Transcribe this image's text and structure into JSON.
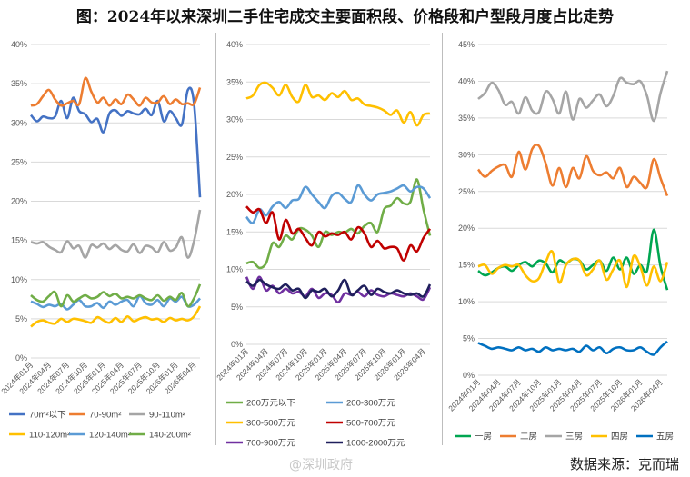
{
  "title": "图：2024年以来深圳二手住宅成交主要面积段、价格段和户型段月度占比走势",
  "source": "数据来源：克而瑞",
  "watermark": "@深圳政府",
  "x_labels": [
    "2024年01月",
    "2024年04月",
    "2024年07月",
    "2024年10月",
    "2025年01月",
    "2025年04月",
    "2025年07月",
    "2025年10月",
    "2026年01月",
    "2026年04月"
  ],
  "chart_data": [
    {
      "type": "line",
      "yticks": [
        "0%",
        "5%",
        "10%",
        "15%",
        "20%",
        "25%",
        "30%",
        "35%",
        "40%"
      ],
      "ylim": [
        0,
        40
      ],
      "grid": true,
      "legend_position": "bottom",
      "series": [
        {
          "name": "70m²以下",
          "color": "#4472C4",
          "values": [
            31,
            30.2,
            30.8,
            30.6,
            30.8,
            32.8,
            30.6,
            33.2,
            31.5,
            31.1,
            30.1,
            30.5,
            28.8,
            31.2,
            31.6,
            30.9,
            31.5,
            31.2,
            31.1,
            31.8,
            31.0,
            32.8,
            30.2,
            31.5,
            30.6,
            29.8,
            34.2,
            32.5,
            20.5
          ]
        },
        {
          "name": "70-90m²",
          "color": "#ED7D31",
          "values": [
            32.2,
            32.4,
            33.4,
            34.2,
            33.0,
            32.2,
            32.5,
            32.8,
            32.4,
            35.7,
            34.0,
            32.6,
            33.2,
            32.2,
            33.0,
            32.4,
            33.6,
            33.0,
            32.2,
            33.2,
            32.6,
            32.6,
            33.4,
            32.4,
            33.0,
            32.4,
            32.5,
            32.4,
            34.5
          ]
        },
        {
          "name": "90-110m²",
          "color": "#A5A5A5",
          "values": [
            14.8,
            14.6,
            14.8,
            14.2,
            13.8,
            13.5,
            14.9,
            14.0,
            14.3,
            12.8,
            14.4,
            14.1,
            14.6,
            13.9,
            14.4,
            13.8,
            13.6,
            14.5,
            13.4,
            14.3,
            14.1,
            13.5,
            14.8,
            13.7,
            14.1,
            15.4,
            12.8,
            14.9,
            18.9
          ]
        },
        {
          "name": "110-120m²",
          "color": "#FFC000",
          "values": [
            4.0,
            4.6,
            4.8,
            4.5,
            4.4,
            5.0,
            4.6,
            5.0,
            4.9,
            4.7,
            4.5,
            5.2,
            4.8,
            4.5,
            5.1,
            4.6,
            5.3,
            4.7,
            5.0,
            5.2,
            4.9,
            5.0,
            4.6,
            5.1,
            4.8,
            5.0,
            4.8,
            5.3,
            6.6
          ]
        },
        {
          "name": "120-140m²",
          "color": "#5B9BD5",
          "values": [
            7.2,
            6.9,
            6.5,
            6.8,
            6.6,
            6.9,
            6.2,
            6.8,
            7.4,
            6.6,
            6.6,
            7.0,
            6.4,
            7.2,
            6.8,
            7.2,
            7.4,
            6.6,
            7.9,
            7.0,
            6.8,
            7.4,
            6.6,
            7.6,
            7.2,
            7.8,
            6.6,
            6.8,
            7.6
          ]
        },
        {
          "name": "140-200m²",
          "color": "#70AD47",
          "values": [
            8.0,
            7.4,
            7.2,
            7.9,
            8.4,
            6.6,
            8.0,
            7.2,
            7.6,
            8.0,
            7.6,
            7.8,
            8.4,
            7.9,
            8.2,
            7.6,
            7.8,
            7.6,
            8.0,
            7.6,
            7.4,
            8.0,
            7.3,
            7.8,
            7.4,
            8.3,
            6.6,
            7.6,
            9.4
          ]
        }
      ]
    },
    {
      "type": "line",
      "yticks": [
        "0%",
        "5%",
        "10%",
        "15%",
        "20%",
        "25%",
        "30%",
        "35%",
        "40%"
      ],
      "ylim": [
        0,
        40
      ],
      "grid": true,
      "legend_position": "bottom",
      "series": [
        {
          "name": "200万元以下",
          "color": "#70AD47",
          "values": [
            10.8,
            11.0,
            10.2,
            10.8,
            13.5,
            13.0,
            14.5,
            14.0,
            15.4,
            15.3,
            14.5,
            13.0,
            15.0,
            14.6,
            15.0,
            14.9,
            15.4,
            14.8,
            15.8,
            16.2,
            15.0,
            18.0,
            18.5,
            19.5,
            18.8,
            19.0,
            22.0,
            18.0,
            14.5
          ]
        },
        {
          "name": "200-300万元",
          "color": "#5B9BD5",
          "values": [
            17.0,
            16.2,
            18.0,
            17.2,
            18.4,
            19.0,
            18.2,
            19.2,
            19.4,
            21.0,
            20.0,
            19.0,
            18.2,
            19.8,
            20.2,
            19.4,
            19.0,
            21.2,
            20.0,
            19.2,
            20.0,
            20.2,
            20.4,
            20.8,
            21.2,
            20.4,
            21.0,
            20.8,
            19.5
          ]
        },
        {
          "name": "300-500万元",
          "color": "#FFC000",
          "values": [
            32.8,
            33.2,
            34.6,
            34.9,
            34.2,
            33.2,
            34.6,
            33.0,
            32.4,
            34.6,
            33.0,
            33.2,
            32.6,
            33.5,
            33.0,
            33.8,
            32.6,
            32.8,
            32.0,
            31.8,
            31.6,
            31.2,
            30.6,
            31.2,
            29.6,
            31.0,
            29.2,
            30.6,
            30.8
          ]
        },
        {
          "name": "500-700万元",
          "color": "#C00000",
          "values": [
            18.4,
            17.6,
            18.0,
            16.2,
            17.6,
            14.0,
            16.6,
            14.8,
            15.4,
            14.2,
            13.2,
            15.0,
            14.4,
            14.8,
            14.6,
            15.0,
            14.0,
            15.6,
            14.8,
            13.0,
            13.8,
            12.8,
            13.0,
            12.8,
            11.2,
            13.2,
            12.4,
            14.2,
            15.4
          ]
        },
        {
          "name": "700-900万元",
          "color": "#7030A0",
          "values": [
            9.0,
            7.4,
            9.0,
            7.2,
            7.8,
            6.8,
            7.4,
            6.8,
            7.0,
            6.4,
            7.4,
            6.2,
            6.8,
            6.6,
            5.6,
            6.8,
            6.6,
            7.0,
            6.4,
            7.2,
            6.6,
            6.4,
            6.8,
            6.6,
            6.4,
            6.8,
            6.4,
            6.0,
            7.6
          ]
        },
        {
          "name": "1000-2000万元",
          "color": "#1F1F5C",
          "values": [
            8.4,
            7.8,
            8.6,
            8.0,
            7.6,
            7.4,
            8.0,
            7.2,
            7.4,
            6.2,
            7.2,
            7.0,
            7.4,
            6.4,
            7.2,
            8.6,
            6.6,
            7.2,
            7.8,
            6.6,
            7.4,
            7.0,
            6.8,
            7.2,
            6.8,
            6.6,
            6.8,
            6.4,
            8.0
          ]
        }
      ]
    },
    {
      "type": "line",
      "yticks": [
        "0%",
        "5%",
        "10%",
        "15%",
        "20%",
        "25%",
        "30%",
        "35%",
        "40%",
        "45%"
      ],
      "ylim": [
        0,
        45
      ],
      "grid": true,
      "legend_position": "bottom",
      "series": [
        {
          "name": "一房",
          "color": "#00A651",
          "values": [
            14.2,
            13.6,
            14.0,
            14.6,
            14.8,
            14.2,
            15.0,
            15.4,
            14.8,
            15.6,
            15.2,
            14.0,
            15.6,
            15.2,
            15.8,
            15.6,
            14.4,
            15.0,
            15.6,
            14.2,
            16.0,
            14.4,
            16.0,
            13.8,
            15.0,
            14.2,
            19.8,
            14.8,
            11.6
          ]
        },
        {
          "name": "二房",
          "color": "#ED7D31",
          "values": [
            28.0,
            27.0,
            27.8,
            28.4,
            28.6,
            27.0,
            30.4,
            28.0,
            30.8,
            31.2,
            28.8,
            25.8,
            28.2,
            25.6,
            28.2,
            26.8,
            29.8,
            27.8,
            27.2,
            27.6,
            26.8,
            28.2,
            25.6,
            27.0,
            26.2,
            25.6,
            29.4,
            26.8,
            24.4
          ]
        },
        {
          "name": "三房",
          "color": "#A5A5A5",
          "values": [
            37.6,
            38.4,
            39.8,
            38.8,
            36.8,
            37.2,
            35.6,
            37.8,
            36.0,
            35.8,
            38.6,
            37.6,
            35.6,
            38.6,
            34.8,
            37.6,
            36.4,
            37.4,
            38.2,
            36.6,
            38.0,
            40.4,
            39.8,
            39.6,
            40.0,
            38.0,
            34.6,
            38.4,
            41.4
          ]
        },
        {
          "name": "四房",
          "color": "#FFC000",
          "values": [
            14.8,
            15.0,
            13.8,
            14.6,
            15.0,
            14.8,
            15.0,
            13.6,
            12.8,
            13.2,
            15.4,
            16.8,
            12.6,
            15.0,
            15.8,
            15.6,
            13.6,
            14.4,
            15.6,
            13.0,
            14.4,
            15.6,
            12.0,
            16.2,
            14.8,
            12.2,
            14.8,
            12.8,
            15.4
          ]
        },
        {
          "name": "五房",
          "color": "#0070C0",
          "values": [
            4.4,
            4.0,
            3.6,
            3.8,
            3.6,
            3.4,
            3.8,
            3.4,
            3.6,
            3.2,
            3.8,
            3.4,
            3.6,
            3.4,
            3.6,
            3.2,
            4.0,
            3.4,
            3.8,
            3.0,
            3.6,
            3.8,
            3.4,
            3.4,
            3.8,
            3.2,
            2.8,
            3.8,
            4.6
          ]
        }
      ]
    }
  ]
}
